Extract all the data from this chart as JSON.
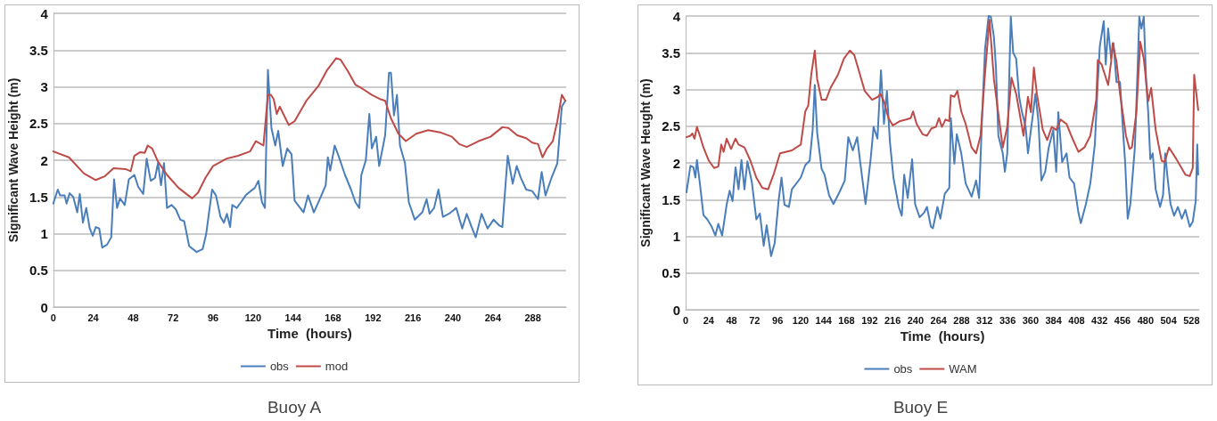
{
  "chart_data": [
    {
      "type": "line",
      "title": "Buoy A",
      "xlabel": "Time  (hours)",
      "ylabel": "Significant Wave Height (m)",
      "xlim": [
        0,
        308
      ],
      "xticks": [
        0,
        24,
        48,
        72,
        96,
        120,
        144,
        168,
        192,
        216,
        240,
        264,
        288
      ],
      "ylim": [
        0,
        4
      ],
      "yticks": [
        0,
        0.5,
        1,
        1.5,
        2,
        2.5,
        3,
        3.5,
        4
      ],
      "grid": "y",
      "legend": "bottom",
      "marker": "none",
      "line_style": "solid",
      "series": [
        {
          "name": "obs",
          "color": "#4a7ebb",
          "x": [
            0,
            2.7,
            4.1,
            6.8,
            8,
            9.8,
            12,
            14.4,
            15.9,
            17.8,
            19.8,
            21.9,
            23.7,
            25.5,
            27.6,
            29.4,
            32.3,
            34.8,
            36.5,
            38.3,
            40.1,
            42.9,
            45.4,
            48.7,
            51,
            54,
            56.1,
            58.5,
            61.1,
            62.9,
            64.7,
            66.5,
            68.3,
            71,
            73.6,
            76.3,
            78.6,
            81.6,
            86.1,
            89.7,
            91.8,
            93.2,
            95.4,
            97.7,
            100.4,
            102.5,
            104.3,
            106.2,
            107.5,
            110.2,
            112.8,
            115.5,
            118.5,
            120.9,
            123.2,
            125.3,
            127.1,
            128.9,
            131,
            133.3,
            135.1,
            137.8,
            140.5,
            143.1,
            144.9,
            150.3,
            153,
            156.5,
            161,
            163.6,
            164.9,
            166.3,
            169,
            171.6,
            175.2,
            178.8,
            181.4,
            183.8,
            185,
            187.7,
            189.8,
            191.3,
            193.9,
            195.7,
            199.3,
            201.6,
            202.8,
            204.6,
            206.4,
            208.2,
            211.2,
            213.5,
            217.1,
            221.6,
            224.2,
            226,
            228.7,
            231.3,
            234,
            237.6,
            242,
            245.6,
            248.3,
            250.9,
            253.7,
            257.2,
            260.8,
            264.4,
            267.9,
            269.7,
            272.9,
            275.9,
            278.3,
            280.8,
            284,
            287.6,
            291.1,
            293.3,
            295.6,
            299.2,
            302.7,
            305.4,
            307.5
          ],
          "values": [
            1.41,
            1.6,
            1.52,
            1.52,
            1.41,
            1.55,
            1.5,
            1.29,
            1.54,
            1.15,
            1.35,
            1.07,
            0.97,
            1.09,
            1.07,
            0.81,
            0.85,
            0.95,
            1.74,
            1.35,
            1.48,
            1.39,
            1.74,
            1.8,
            1.64,
            1.54,
            2.02,
            1.72,
            1.76,
            1.96,
            1.66,
            1.96,
            1.35,
            1.39,
            1.33,
            1.19,
            1.17,
            0.83,
            0.75,
            0.79,
            0.99,
            1.23,
            1.6,
            1.52,
            1.23,
            1.15,
            1.27,
            1.09,
            1.39,
            1.35,
            1.43,
            1.52,
            1.58,
            1.62,
            1.72,
            1.43,
            1.35,
            3.23,
            2.44,
            2.2,
            2.4,
            1.92,
            2.16,
            2.08,
            1.45,
            1.29,
            1.52,
            1.29,
            1.52,
            1.66,
            2.04,
            1.86,
            2.2,
            2.04,
            1.8,
            1.6,
            1.43,
            1.35,
            1.8,
            2,
            2.63,
            2.16,
            2.32,
            1.92,
            2.34,
            3.19,
            3.19,
            2.61,
            2.89,
            2.2,
            1.96,
            1.43,
            1.19,
            1.29,
            1.47,
            1.27,
            1.35,
            1.6,
            1.23,
            1.27,
            1.35,
            1.07,
            1.27,
            1.11,
            0.95,
            1.27,
            1.07,
            1.19,
            1.11,
            1.09,
            2.06,
            1.68,
            1.92,
            1.76,
            1.6,
            1.58,
            1.47,
            1.84,
            1.52,
            1.76,
            1.96,
            2.73,
            2.81
          ]
        },
        {
          "name": "mod",
          "color": "#be4b48",
          "x": [
            0,
            9.4,
            18.4,
            25.5,
            30.8,
            36.2,
            43.3,
            46.5,
            48.7,
            52.2,
            54.9,
            56.7,
            59.4,
            62.9,
            68.3,
            75.4,
            83.4,
            87,
            91.4,
            95.9,
            103.9,
            111,
            118.2,
            121.7,
            126.2,
            128.9,
            130.7,
            132.4,
            134.2,
            136,
            141.4,
            144.9,
            152,
            159.2,
            164.5,
            169.9,
            172.5,
            177,
            181.4,
            185.9,
            191.3,
            196.6,
            199.3,
            202.8,
            207.3,
            211.7,
            218,
            225.1,
            232.3,
            239.4,
            243.8,
            248.3,
            255.4,
            262.6,
            269.7,
            273.3,
            278.6,
            284,
            287.6,
            291.1,
            293.8,
            296.5,
            300,
            302.7,
            305.4,
            307.5
          ],
          "values": [
            2.12,
            2.04,
            1.82,
            1.73,
            1.78,
            1.89,
            1.88,
            1.85,
            2.06,
            2.11,
            2.1,
            2.2,
            2.16,
            1.98,
            1.8,
            1.62,
            1.48,
            1.56,
            1.76,
            1.92,
            2.02,
            2.06,
            2.12,
            2.26,
            2.2,
            2.89,
            2.89,
            2.83,
            2.63,
            2.73,
            2.48,
            2.53,
            2.81,
            3.01,
            3.23,
            3.39,
            3.37,
            3.21,
            3.03,
            2.97,
            2.89,
            2.83,
            2.81,
            2.57,
            2.36,
            2.26,
            2.36,
            2.41,
            2.38,
            2.32,
            2.22,
            2.18,
            2.26,
            2.32,
            2.45,
            2.44,
            2.34,
            2.3,
            2.24,
            2.22,
            2.04,
            2.16,
            2.26,
            2.53,
            2.89,
            2.81
          ]
        }
      ]
    },
    {
      "type": "line",
      "title": "Buoy E",
      "xlabel": "Time  (hours)",
      "ylabel": "Significant Wave Heught (m)",
      "xlim": [
        0,
        536
      ],
      "xticks": [
        0,
        24,
        48,
        72,
        96,
        120,
        144,
        168,
        192,
        216,
        240,
        264,
        288,
        312,
        336,
        360,
        384,
        408,
        432,
        456,
        480,
        504,
        528
      ],
      "ylim": [
        0,
        4
      ],
      "yticks": [
        0,
        0.5,
        1,
        1.5,
        2,
        2.5,
        3,
        3.5,
        4
      ],
      "grid": "y",
      "legend": "bottom",
      "marker": "none",
      "line_style": "solid",
      "series": [
        {
          "name": "obs",
          "color": "#4a7ebb",
          "x": [
            0.9,
            5,
            8.1,
            10.2,
            11.8,
            14.9,
            18.6,
            22.6,
            27.3,
            31,
            34.1,
            38.1,
            42.8,
            45.9,
            49,
            52.1,
            55.2,
            58.3,
            61.4,
            64.5,
            69.1,
            73.8,
            77.5,
            81.5,
            84.6,
            89.2,
            93,
            97,
            100.1,
            103.2,
            107.8,
            110.9,
            115.6,
            120.2,
            124.9,
            129.5,
            132.6,
            134.8,
            137.3,
            141.9,
            145,
            149.7,
            154.3,
            160.5,
            166.1,
            169.8,
            174.5,
            179.1,
            182.2,
            187.8,
            193.1,
            196.2,
            200.2,
            203.9,
            207,
            210.1,
            213.2,
            216.9,
            222.5,
            225.6,
            228.1,
            231.8,
            236.4,
            239.5,
            244.2,
            248.8,
            251.9,
            256,
            258.1,
            262.8,
            265.9,
            270.5,
            275.2,
            276.8,
            280.5,
            283,
            287.7,
            292.3,
            298.5,
            303.2,
            306.3,
            309.4,
            312.5,
            316.2,
            318.6,
            321.8,
            323.9,
            326.4,
            331,
            333.2,
            335.7,
            339.4,
            341.9,
            345,
            348.1,
            351.1,
            354.9,
            357.3,
            362,
            365.1,
            368.2,
            371.3,
            375.3,
            379,
            383.7,
            386.8,
            389,
            393,
            397.6,
            400.7,
            405.4,
            410,
            412.5,
            417.8,
            422.4,
            427.1,
            430.2,
            432.3,
            436.4,
            438.5,
            441,
            444.1,
            446.6,
            449.7,
            453.4,
            456.5,
            458.9,
            461.4,
            464.2,
            468.9,
            472,
            473.5,
            475.7,
            478.2,
            480.7,
            482.8,
            485,
            487.5,
            490.6,
            495.2,
            498.3,
            500.5,
            503,
            506.1,
            509.8,
            513.8,
            517.9,
            521.6,
            526.2,
            529.3,
            532.4,
            534,
            535
          ],
          "values": [
            1.6,
            1.96,
            1.94,
            1.8,
            2.04,
            1.72,
            1.29,
            1.23,
            1.13,
            1.01,
            1.17,
            1.01,
            1.43,
            1.62,
            1.48,
            1.94,
            1.64,
            2.04,
            1.64,
            2.02,
            1.74,
            1.23,
            1.31,
            0.87,
            1.15,
            0.73,
            0.91,
            1.48,
            1.8,
            1.43,
            1.4,
            1.64,
            1.72,
            1.8,
            1.97,
            2.03,
            2.45,
            3.06,
            2.41,
            1.92,
            1.84,
            1.56,
            1.44,
            1.6,
            1.76,
            2.35,
            2.17,
            2.35,
            2.01,
            1.44,
            2.05,
            2.49,
            2.33,
            3.26,
            2.53,
            2.98,
            2.29,
            1.8,
            1.4,
            1.28,
            1.84,
            1.52,
            2.05,
            1.44,
            1.26,
            1.32,
            1.4,
            1.13,
            1.11,
            1.4,
            1.24,
            1.58,
            1.66,
            2.61,
            1.99,
            2.39,
            2.13,
            1.72,
            1.54,
            1.76,
            1.52,
            2.61,
            3.55,
            4,
            3.99,
            3.71,
            3.3,
            2.37,
            2.13,
            1.88,
            2.13,
            3.99,
            3.5,
            3.42,
            2.9,
            2.69,
            2.49,
            2.13,
            2.61,
            2.94,
            2.57,
            1.76,
            1.88,
            2.21,
            2.45,
            1.88,
            2.69,
            2.01,
            2.13,
            1.8,
            1.72,
            1.32,
            1.18,
            1.44,
            1.72,
            2.25,
            3.1,
            3.59,
            3.93,
            3.34,
            3.83,
            3.42,
            3.63,
            3.1,
            3.1,
            2.45,
            1.97,
            1.24,
            1.44,
            2.21,
            3.38,
            3.99,
            3.83,
            3.99,
            3.1,
            2.69,
            2.05,
            2.13,
            1.64,
            1.4,
            1.56,
            2.13,
            1.8,
            1.44,
            1.28,
            1.4,
            1.24,
            1.36,
            1.13,
            1.2,
            1.48,
            2.25,
            1.84
          ]
        },
        {
          "name": "WAM",
          "color": "#be4b48",
          "x": [
            0.9,
            5,
            7.1,
            9.3,
            11.8,
            14.9,
            18.6,
            24.2,
            29.7,
            34.1,
            37.2,
            39.7,
            42.8,
            47.4,
            52.1,
            55.2,
            61.4,
            67.6,
            73.8,
            80,
            86.1,
            92.3,
            98.5,
            110.9,
            120.2,
            124.9,
            128,
            131.1,
            134.8,
            137.3,
            141.9,
            146.6,
            151.2,
            159,
            165.2,
            171.4,
            176,
            180.7,
            186.9,
            194.6,
            200.8,
            203.3,
            207,
            211.7,
            216.3,
            224,
            230.2,
            234.9,
            237.4,
            241.1,
            247.3,
            251.9,
            256.6,
            261.2,
            264.4,
            267.5,
            271.2,
            275.2,
            276.8,
            280.5,
            283.6,
            287.7,
            292.3,
            298.5,
            303.2,
            307.8,
            312.5,
            317.1,
            321.8,
            324.9,
            331,
            335.7,
            340.1,
            345,
            352.7,
            357.3,
            360.4,
            363.5,
            366.6,
            372.8,
            377.4,
            382.1,
            386.8,
            391.4,
            397.6,
            403.8,
            410,
            416.2,
            422.4,
            428.6,
            430.2,
            434.2,
            441,
            444.1,
            445.7,
            449.7,
            453.4,
            459.6,
            463.3,
            465.8,
            470.5,
            474.5,
            478.2,
            482.8,
            485.9,
            490.6,
            496.8,
            499.9,
            504.5,
            512.3,
            521.6,
            526.2,
            529.3,
            530.8,
            535
          ],
          "values": [
            2.35,
            2.37,
            2.4,
            2.33,
            2.49,
            2.37,
            2.21,
            2.03,
            1.93,
            1.95,
            2.25,
            2.15,
            2.33,
            2.19,
            2.33,
            2.25,
            2.21,
            2.03,
            1.8,
            1.66,
            1.64,
            1.86,
            2.13,
            2.17,
            2.25,
            2.7,
            2.78,
            3.2,
            3.53,
            3.14,
            2.86,
            2.86,
            3.02,
            3.2,
            3.42,
            3.53,
            3.47,
            3.26,
            2.98,
            2.86,
            2.9,
            2.94,
            2.84,
            2.61,
            2.51,
            2.57,
            2.59,
            2.61,
            2.7,
            2.53,
            2.39,
            2.37,
            2.47,
            2.49,
            2.61,
            2.49,
            2.59,
            2.57,
            2.92,
            2.9,
            2.98,
            2.7,
            2.53,
            2.21,
            2.13,
            2.37,
            3.22,
            3.95,
            3.14,
            2.82,
            2.21,
            2.49,
            3.16,
            2.94,
            2.37,
            2.9,
            2.69,
            3.3,
            2.94,
            2.45,
            2.31,
            2.49,
            2.45,
            2.59,
            2.53,
            2.33,
            2.15,
            2.21,
            2.37,
            2.86,
            3.4,
            3.34,
            3.06,
            3.38,
            3.63,
            3.38,
            2.94,
            2.37,
            2.19,
            2.21,
            2.69,
            3.65,
            3.42,
            2.84,
            3.02,
            2.45,
            2.03,
            2.01,
            2.21,
            2.05,
            1.84,
            1.82,
            1.93,
            3.2,
            2.72
          ]
        }
      ]
    }
  ]
}
